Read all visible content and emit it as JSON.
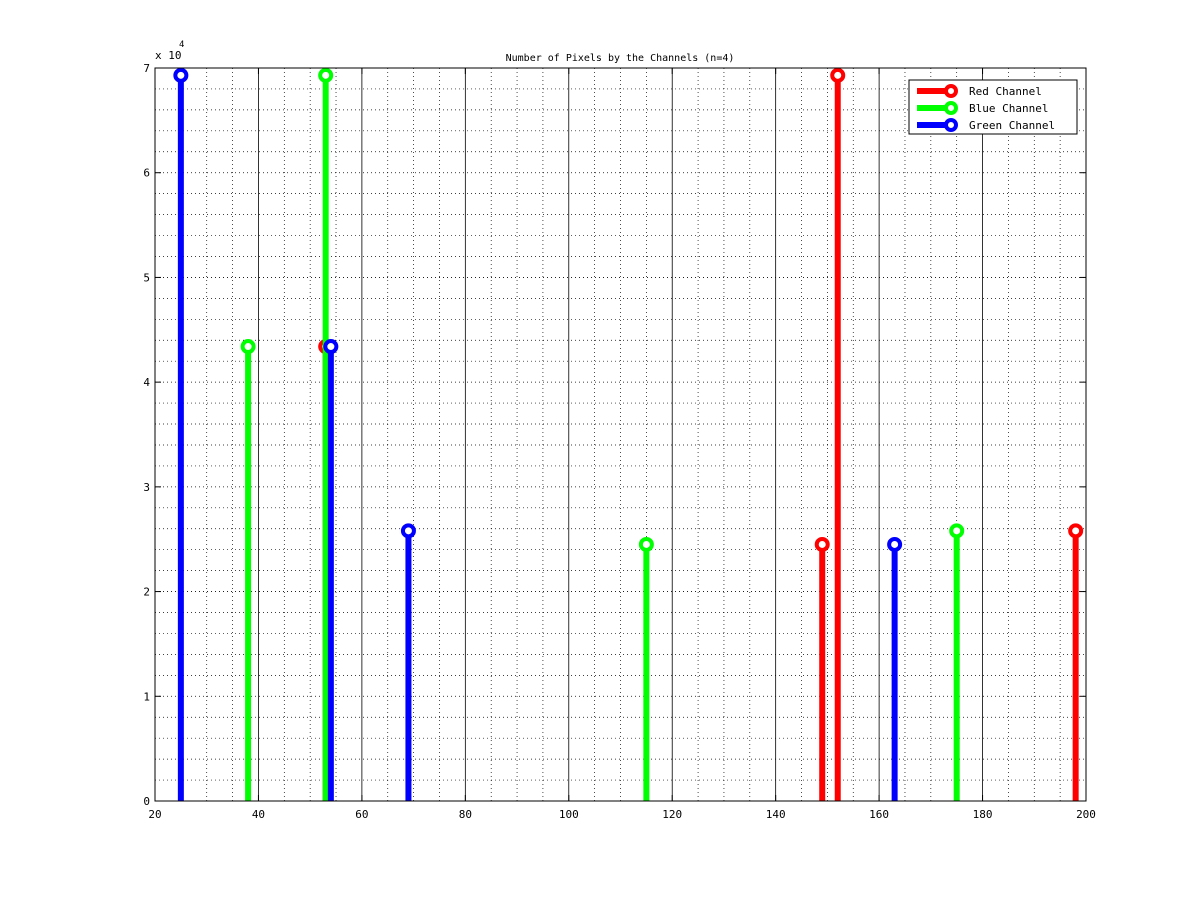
{
  "chart_data": {
    "type": "stem",
    "title": "Number of Pixels by the Channels (n=4)",
    "xlabel": "",
    "ylabel": "",
    "xlim": [
      20,
      200
    ],
    "ylim": [
      0,
      70000
    ],
    "x_ticks": [
      20,
      40,
      60,
      80,
      100,
      120,
      140,
      160,
      180,
      200
    ],
    "y_ticks": [
      0,
      10000,
      20000,
      30000,
      40000,
      50000,
      60000,
      70000
    ],
    "y_tick_labels": [
      "0",
      "1",
      "2",
      "3",
      "4",
      "5",
      "6",
      "7"
    ],
    "y_exponent_base": "x 10",
    "y_exponent_power": "4",
    "grid": "major solid vertical, minor dotted",
    "legend_position": "top-right",
    "series": [
      {
        "name": "Red Channel",
        "color": "#ff0000",
        "x": [
          53,
          149,
          152,
          198
        ],
        "y": [
          43400,
          24500,
          69300,
          25800
        ]
      },
      {
        "name": "Blue Channel",
        "color": "#00ff00",
        "x": [
          38,
          53,
          115,
          175
        ],
        "y": [
          43400,
          69300,
          24500,
          25800
        ]
      },
      {
        "name": "Green Channel",
        "color": "#0000ff",
        "x": [
          25,
          54,
          69,
          163
        ],
        "y": [
          69300,
          43400,
          25800,
          24500
        ]
      }
    ]
  }
}
